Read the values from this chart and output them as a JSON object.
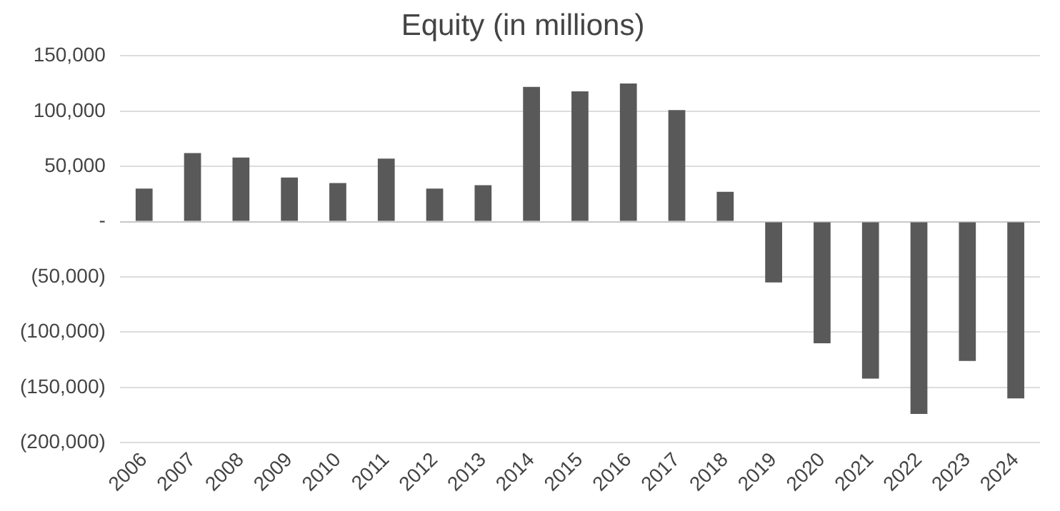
{
  "chart_data": {
    "type": "bar",
    "title": "Equity (in millions)",
    "categories": [
      "2006",
      "2007",
      "2008",
      "2009",
      "2010",
      "2011",
      "2012",
      "2013",
      "2014",
      "2015",
      "2016",
      "2017",
      "2018",
      "2019",
      "2020",
      "2021",
      "2022",
      "2023",
      "2024"
    ],
    "values": [
      30000,
      62000,
      58000,
      40000,
      35000,
      57000,
      30000,
      33000,
      122000,
      118000,
      125000,
      101000,
      27000,
      -55000,
      -110000,
      -142000,
      -174000,
      -126000,
      -160000
    ],
    "color": "#595959",
    "ylim": [
      -200000,
      150000
    ],
    "yticks": [
      {
        "value": -200000,
        "label": "(200,000)"
      },
      {
        "value": -150000,
        "label": "(150,000)"
      },
      {
        "value": -100000,
        "label": "(100,000)"
      },
      {
        "value": -50000,
        "label": "(50,000)"
      },
      {
        "value": 0,
        "label": "-"
      },
      {
        "value": 50000,
        "label": "50,000"
      },
      {
        "value": 100000,
        "label": "100,000"
      },
      {
        "value": 150000,
        "label": "150,000"
      }
    ],
    "grid": "y",
    "legend": false
  }
}
